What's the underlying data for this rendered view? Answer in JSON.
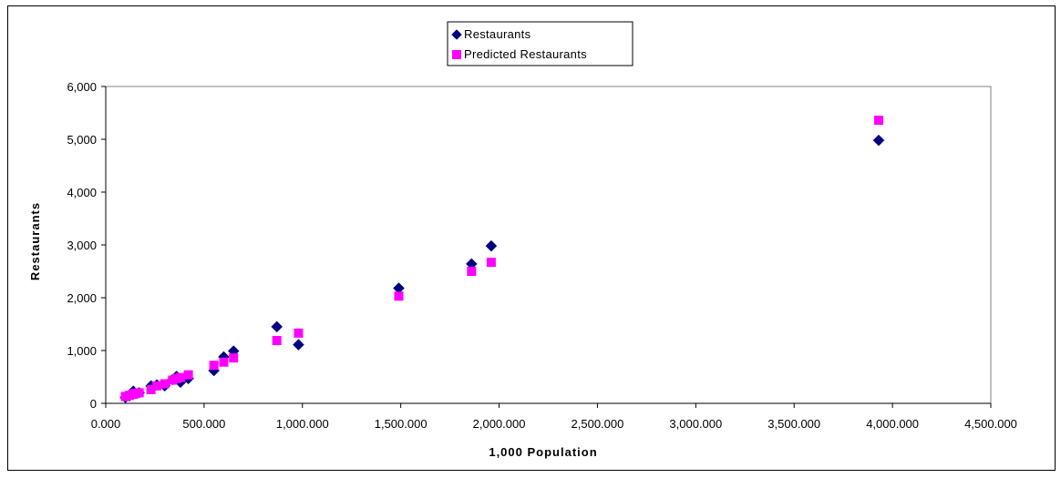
{
  "chart_data": {
    "type": "scatter",
    "xlabel": "1,000  Population",
    "ylabel": "Restaurants",
    "xlim": [
      0,
      4500
    ],
    "ylim": [
      0,
      6000
    ],
    "x_ticks": [
      0,
      500,
      1000,
      1500,
      2000,
      2500,
      3000,
      3500,
      4000,
      4500
    ],
    "y_ticks": [
      0,
      1000,
      2000,
      3000,
      4000,
      5000,
      6000
    ],
    "x_tick_labels": [
      "0.000",
      "500.000",
      "1,000.000",
      "1,500.000",
      "2,000.000",
      "2,500.000",
      "3,000.000",
      "3,500.000",
      "4,000.000",
      "4,500.000"
    ],
    "y_tick_labels": [
      "0",
      "1,000",
      "2,000",
      "3,000",
      "4,000",
      "5,000",
      "6,000"
    ],
    "grid": false,
    "legend_position": "top-center",
    "series": [
      {
        "name": "Restaurants",
        "marker": "diamond",
        "color": "#000080",
        "points": [
          [
            100,
            110
          ],
          [
            120,
            140
          ],
          [
            140,
            230
          ],
          [
            150,
            190
          ],
          [
            170,
            200
          ],
          [
            230,
            330
          ],
          [
            260,
            350
          ],
          [
            300,
            330
          ],
          [
            340,
            450
          ],
          [
            360,
            510
          ],
          [
            380,
            400
          ],
          [
            420,
            470
          ],
          [
            550,
            620
          ],
          [
            600,
            880
          ],
          [
            650,
            990
          ],
          [
            870,
            1450
          ],
          [
            980,
            1110
          ],
          [
            1490,
            2180
          ],
          [
            1860,
            2640
          ],
          [
            1960,
            2980
          ],
          [
            3930,
            4980
          ]
        ]
      },
      {
        "name": "Predicted  Restaurants",
        "marker": "square",
        "color": "#FF00FF",
        "points": [
          [
            100,
            130
          ],
          [
            120,
            150
          ],
          [
            140,
            170
          ],
          [
            150,
            190
          ],
          [
            170,
            200
          ],
          [
            230,
            260
          ],
          [
            260,
            330
          ],
          [
            300,
            370
          ],
          [
            340,
            440
          ],
          [
            360,
            470
          ],
          [
            380,
            490
          ],
          [
            420,
            540
          ],
          [
            550,
            720
          ],
          [
            600,
            780
          ],
          [
            650,
            860
          ],
          [
            870,
            1190
          ],
          [
            980,
            1330
          ],
          [
            1490,
            2030
          ],
          [
            1860,
            2500
          ],
          [
            1960,
            2670
          ],
          [
            3930,
            5360
          ]
        ]
      }
    ]
  }
}
